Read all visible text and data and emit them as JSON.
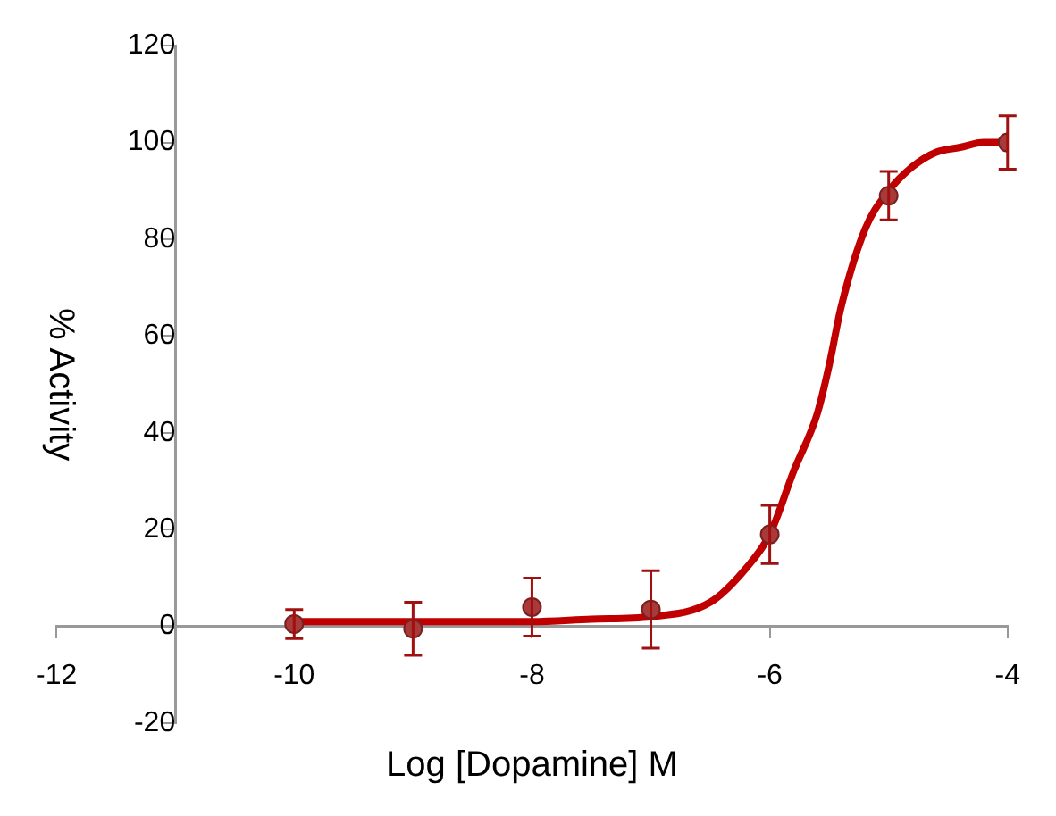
{
  "chart_data": {
    "type": "scatter",
    "xlabel": "Log [Dopamine] M",
    "ylabel": "% Activity",
    "xlim": [
      -12,
      -4
    ],
    "xticks": [
      -12,
      -10,
      -8,
      -6,
      -4
    ],
    "ylim": [
      -20,
      120
    ],
    "yticks": [
      -20,
      0,
      20,
      40,
      60,
      80,
      100,
      120
    ],
    "grid": false,
    "legend": false,
    "series": [
      {
        "type": "line",
        "color": "#c00000",
        "marker": "none",
        "line_style": "solid",
        "x": [
          -10,
          -9,
          -8,
          -7.5,
          -7,
          -6.5,
          -6.2,
          -6,
          -5.8,
          -5.6,
          -5.5,
          -5.4,
          -5.2,
          -5,
          -4.8,
          -4.6,
          -4.4,
          -4.2,
          -4
        ],
        "values": [
          1,
          1,
          1,
          1.5,
          2,
          5,
          12,
          19,
          32,
          44,
          54,
          66,
          82,
          90,
          95,
          98,
          99,
          100,
          100
        ]
      },
      {
        "color": "#a83a3a",
        "marker": "circle",
        "x": [
          -10,
          -9,
          -8,
          -7,
          -6,
          -5,
          -4
        ],
        "values": [
          0.5,
          -0.5,
          4,
          3.5,
          19,
          89,
          100
        ],
        "errors": [
          3,
          5.5,
          6,
          8,
          6,
          5,
          5.5
        ]
      }
    ]
  }
}
